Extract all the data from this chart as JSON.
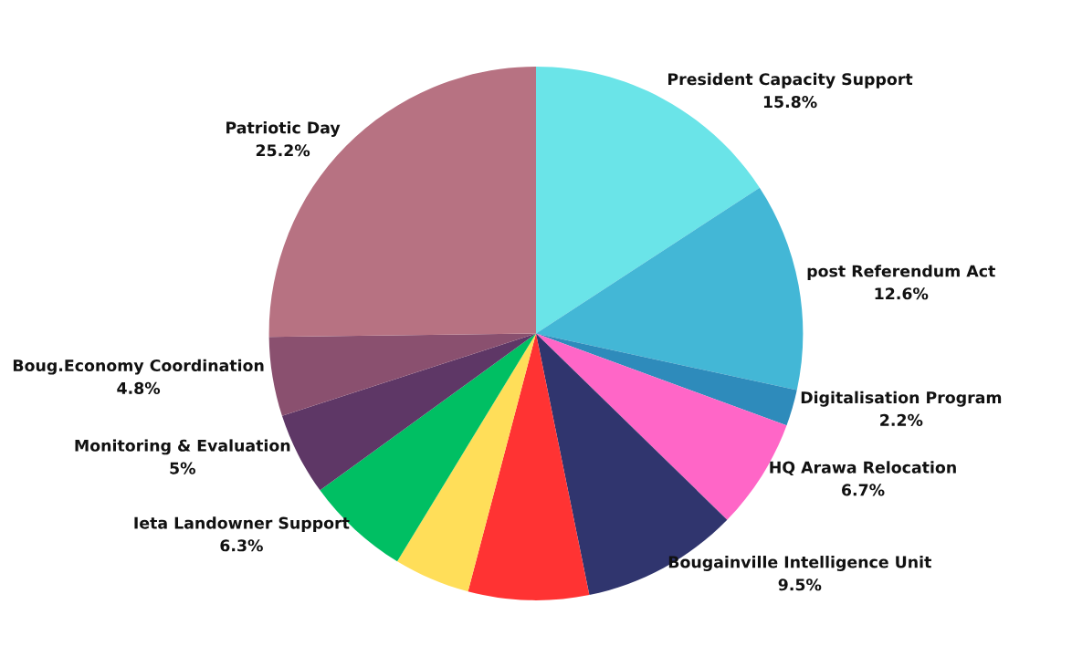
{
  "chart_data": {
    "type": "pie",
    "categories": [
      "President Capacity Support",
      "post Referendum Act",
      "Digitalisation Program",
      "HQ Arawa Relocation",
      "Bougainville Intelligence Unit",
      null,
      null,
      "Ieta Landowner Support",
      "Monitoring & Evaluation",
      "Boug.Economy Coordination",
      "Patriotic Day"
    ],
    "values": [
      15.8,
      12.6,
      2.2,
      6.7,
      9.5,
      7.3,
      4.6,
      6.3,
      5,
      4.8,
      25.2
    ],
    "value_labels": [
      "15.8%",
      "12.6%",
      "2.2%",
      "6.7%",
      "9.5%",
      null,
      null,
      "6.3%",
      "5%",
      "4.8%",
      "25.2%"
    ],
    "colors": [
      "#6ae4e8",
      "#43b7d6",
      "#2e8bbb",
      "#ff66c7",
      "#30356e",
      "#ff3333",
      "#ffde59",
      "#00bf63",
      "#5e3766",
      "#8a506f",
      "#b77282"
    ]
  }
}
